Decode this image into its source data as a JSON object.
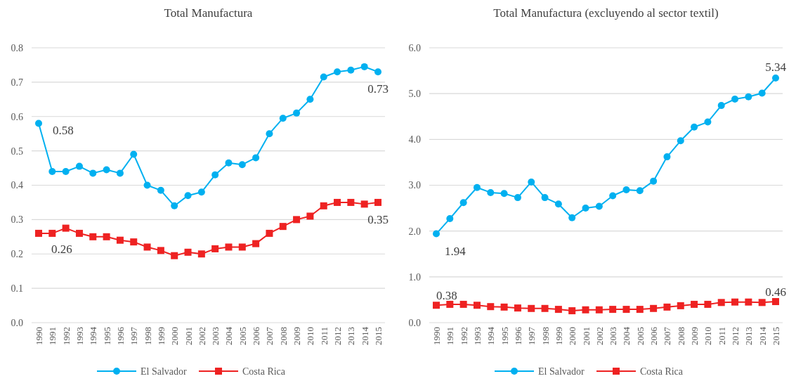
{
  "chart_data": [
    {
      "type": "line",
      "title": "Total Manufactura",
      "categories": [
        "1990",
        "1991",
        "1992",
        "1993",
        "1994",
        "1995",
        "1996",
        "1997",
        "1998",
        "1999",
        "2000",
        "2001",
        "2002",
        "2003",
        "2004",
        "2005",
        "2006",
        "2007",
        "2008",
        "2009",
        "2010",
        "2011",
        "2012",
        "2013",
        "2014",
        "2015"
      ],
      "series": [
        {
          "name": "El Salvador",
          "color": "#00b0f0",
          "marker": "circle",
          "values": [
            0.58,
            0.44,
            0.44,
            0.455,
            0.435,
            0.445,
            0.435,
            0.49,
            0.4,
            0.385,
            0.34,
            0.37,
            0.38,
            0.43,
            0.465,
            0.46,
            0.48,
            0.55,
            0.595,
            0.61,
            0.65,
            0.715,
            0.73,
            0.735,
            0.745,
            0.73
          ],
          "value_labels": [
            "0.58",
            null,
            null,
            null,
            null,
            null,
            null,
            null,
            null,
            null,
            null,
            null,
            null,
            null,
            null,
            null,
            null,
            null,
            null,
            null,
            null,
            null,
            null,
            null,
            null,
            "0.73"
          ]
        },
        {
          "name": "Costa Rica",
          "color": "#ee2222",
          "marker": "square",
          "values": [
            0.26,
            0.26,
            0.275,
            0.26,
            0.25,
            0.25,
            0.24,
            0.235,
            0.22,
            0.21,
            0.195,
            0.205,
            0.2,
            0.215,
            0.22,
            0.22,
            0.23,
            0.26,
            0.28,
            0.3,
            0.31,
            0.34,
            0.35,
            0.35,
            0.345,
            0.35
          ],
          "value_labels": [
            "0.26",
            null,
            null,
            null,
            null,
            null,
            null,
            null,
            null,
            null,
            null,
            null,
            null,
            null,
            null,
            null,
            null,
            null,
            null,
            null,
            null,
            null,
            null,
            null,
            null,
            "0.35"
          ]
        }
      ],
      "ylim": [
        0,
        0.8
      ],
      "yticks": [
        {
          "value": 0,
          "label": "0.0"
        },
        {
          "value": 0.1,
          "label": "0.1"
        },
        {
          "value": 0.2,
          "label": "0.2"
        },
        {
          "value": 0.3,
          "label": "0.3"
        },
        {
          "value": 0.4,
          "label": "0.4"
        },
        {
          "value": 0.5,
          "label": "0.5"
        },
        {
          "value": 0.6,
          "label": "0.6"
        },
        {
          "value": 0.7,
          "label": "0.7"
        },
        {
          "value": 0.8,
          "label": "0.8"
        }
      ],
      "grid": "y",
      "legend": "bottom"
    },
    {
      "type": "line",
      "title": "Total Manufactura (excluyendo al sector textil)",
      "categories": [
        "1990",
        "1991",
        "1992",
        "1993",
        "1994",
        "1995",
        "1996",
        "1997",
        "1998",
        "1999",
        "2000",
        "2001",
        "2002",
        "2003",
        "2004",
        "2005",
        "2006",
        "2007",
        "2008",
        "2009",
        "2010",
        "2011",
        "2012",
        "2013",
        "2014",
        "2015"
      ],
      "series": [
        {
          "name": "El Salvador",
          "color": "#00b0f0",
          "marker": "circle",
          "values": [
            1.94,
            2.27,
            2.62,
            2.95,
            2.84,
            2.82,
            2.73,
            3.07,
            2.73,
            2.59,
            2.29,
            2.5,
            2.54,
            2.77,
            2.9,
            2.88,
            3.09,
            3.62,
            3.97,
            4.27,
            4.38,
            4.74,
            4.88,
            4.93,
            5.01,
            5.34
          ],
          "value_labels": [
            "1.94",
            null,
            null,
            null,
            null,
            null,
            null,
            null,
            null,
            null,
            null,
            null,
            null,
            null,
            null,
            null,
            null,
            null,
            null,
            null,
            null,
            null,
            null,
            null,
            null,
            "5.34"
          ]
        },
        {
          "name": "Costa Rica",
          "color": "#ee2222",
          "marker": "square",
          "values": [
            0.38,
            0.4,
            0.4,
            0.38,
            0.35,
            0.34,
            0.32,
            0.31,
            0.31,
            0.29,
            0.26,
            0.28,
            0.28,
            0.29,
            0.29,
            0.29,
            0.31,
            0.34,
            0.37,
            0.4,
            0.4,
            0.44,
            0.45,
            0.45,
            0.44,
            0.46
          ],
          "value_labels": [
            "0.38",
            null,
            null,
            null,
            null,
            null,
            null,
            null,
            null,
            null,
            null,
            null,
            null,
            null,
            null,
            null,
            null,
            null,
            null,
            null,
            null,
            null,
            null,
            null,
            null,
            "0.46"
          ]
        }
      ],
      "ylim": [
        0,
        6
      ],
      "yticks": [
        {
          "value": 0,
          "label": "0.0"
        },
        {
          "value": 1,
          "label": "1.0"
        },
        {
          "value": 2,
          "label": "2.0"
        },
        {
          "value": 3,
          "label": "3.0"
        },
        {
          "value": 4,
          "label": "4.0"
        },
        {
          "value": 5,
          "label": "5.0"
        },
        {
          "value": 6,
          "label": "6.0"
        }
      ],
      "grid": "y",
      "legend": "bottom"
    }
  ]
}
